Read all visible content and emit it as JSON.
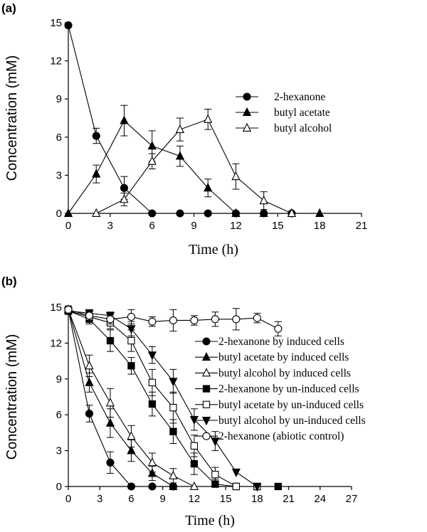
{
  "chart_data": [
    {
      "type": "line",
      "panel_label": "(a)",
      "xlabel": "Time (h)",
      "ylabel": "Concentration (mM)",
      "xlim": [
        0,
        21
      ],
      "ylim": [
        0,
        15
      ],
      "xticks": [
        0,
        3,
        6,
        9,
        12,
        15,
        18,
        21
      ],
      "yticks": [
        0,
        3,
        6,
        9,
        12,
        15
      ],
      "legend_position": "middle-right",
      "series": [
        {
          "name": "2-hexanone",
          "marker": "circle-filled",
          "x": [
            0,
            2,
            4,
            6,
            8,
            10,
            12,
            14,
            16
          ],
          "y": [
            14.8,
            6.1,
            2.0,
            0,
            0,
            0,
            0,
            0,
            0
          ],
          "err": [
            0,
            0.6,
            0.9,
            0,
            0,
            0,
            0,
            0,
            0
          ]
        },
        {
          "name": "butyl acetate",
          "marker": "triangle-filled",
          "x": [
            0,
            2,
            4,
            6,
            8,
            10,
            12,
            14,
            16,
            18
          ],
          "y": [
            0,
            3.1,
            7.3,
            5.3,
            4.5,
            2.0,
            0,
            0,
            0,
            0
          ],
          "err": [
            0,
            0.7,
            1.2,
            1.2,
            0.8,
            0.7,
            0,
            0,
            0,
            0
          ]
        },
        {
          "name": "butyl alcohol",
          "marker": "triangle-open",
          "x": [
            2,
            4,
            6,
            8,
            10,
            12,
            14,
            16
          ],
          "y": [
            0,
            1.1,
            4.1,
            6.6,
            7.4,
            2.9,
            1.0,
            0
          ],
          "err": [
            0,
            0.5,
            0.6,
            0.9,
            0.8,
            1.0,
            0.7,
            0
          ]
        }
      ]
    },
    {
      "type": "line",
      "panel_label": "(b)",
      "xlabel": "Time (h)",
      "ylabel": "Concentration (mM)",
      "xlim": [
        0,
        27
      ],
      "ylim": [
        0,
        15
      ],
      "xticks": [
        0,
        3,
        6,
        9,
        12,
        15,
        18,
        21,
        24,
        27
      ],
      "yticks": [
        0,
        3,
        6,
        9,
        12,
        15
      ],
      "legend_position": "right",
      "series": [
        {
          "name": "2-hexanone by induced cells",
          "marker": "circle-filled",
          "x": [
            0,
            2,
            4,
            6,
            8,
            10
          ],
          "y": [
            14.8,
            6.1,
            2.0,
            0,
            0,
            0
          ],
          "err": [
            0.3,
            0.7,
            0.9,
            0,
            0,
            0
          ]
        },
        {
          "name": "butyl acetate by induced cells",
          "marker": "triangle-filled",
          "x": [
            0,
            2,
            4,
            6,
            8,
            10
          ],
          "y": [
            14.8,
            8.7,
            5.3,
            3.0,
            1.1,
            0
          ],
          "err": [
            0.3,
            0.8,
            1.2,
            0.9,
            0.6,
            0
          ]
        },
        {
          "name": "butyl alcohol by induced cells",
          "marker": "triangle-open",
          "x": [
            0,
            2,
            4,
            6,
            8,
            10,
            12
          ],
          "y": [
            14.8,
            10.1,
            7.0,
            4.2,
            2.0,
            0.9,
            0
          ],
          "err": [
            0.3,
            0.9,
            1.2,
            0.9,
            0.8,
            0.6,
            0
          ]
        },
        {
          "name": "2-hexanone by un-induced cells",
          "marker": "square-filled",
          "x": [
            0,
            2,
            4,
            6,
            8,
            10,
            12,
            14,
            16,
            18,
            20
          ],
          "y": [
            14.7,
            14.0,
            12.2,
            10.1,
            6.9,
            4.6,
            1.9,
            0.2,
            0,
            0,
            0
          ],
          "err": [
            0.3,
            0.4,
            0.9,
            0.7,
            1.0,
            1.0,
            0.9,
            0.4,
            0,
            0,
            0
          ]
        },
        {
          "name": "butyl acetate by un-induced cells",
          "marker": "square-open",
          "x": [
            0,
            2,
            4,
            6,
            8,
            10,
            12,
            14,
            16,
            18
          ],
          "y": [
            14.7,
            14.2,
            13.7,
            12.2,
            8.7,
            6.6,
            3.4,
            1.0,
            0,
            0
          ],
          "err": [
            0.3,
            0.4,
            0.5,
            0.9,
            1.1,
            1.3,
            0.9,
            0.6,
            0,
            0
          ]
        },
        {
          "name": "butyl alcohol by un-induced cells",
          "marker": "triangle-down-filled",
          "x": [
            0,
            2,
            4,
            6,
            8,
            10,
            12,
            14,
            16,
            18
          ],
          "y": [
            14.7,
            14.5,
            14.3,
            13.2,
            11.0,
            8.8,
            5.6,
            3.8,
            1.2,
            0
          ],
          "err": [
            0.3,
            0.3,
            0.3,
            0.6,
            0.7,
            1.0,
            0.9,
            0.8,
            0,
            0
          ]
        },
        {
          "name": "2-hexanone (abiotic control)",
          "marker": "circle-open",
          "x": [
            0,
            2,
            4,
            6,
            8,
            10,
            12,
            14,
            16,
            18,
            20
          ],
          "y": [
            14.8,
            14.3,
            14.0,
            14.2,
            13.8,
            13.9,
            13.9,
            14.0,
            14.0,
            14.1,
            13.2
          ],
          "err": [
            0.3,
            0.5,
            0.4,
            0.6,
            0.4,
            0.9,
            0.4,
            0.6,
            0.9,
            0.4,
            0.6
          ]
        }
      ]
    }
  ]
}
